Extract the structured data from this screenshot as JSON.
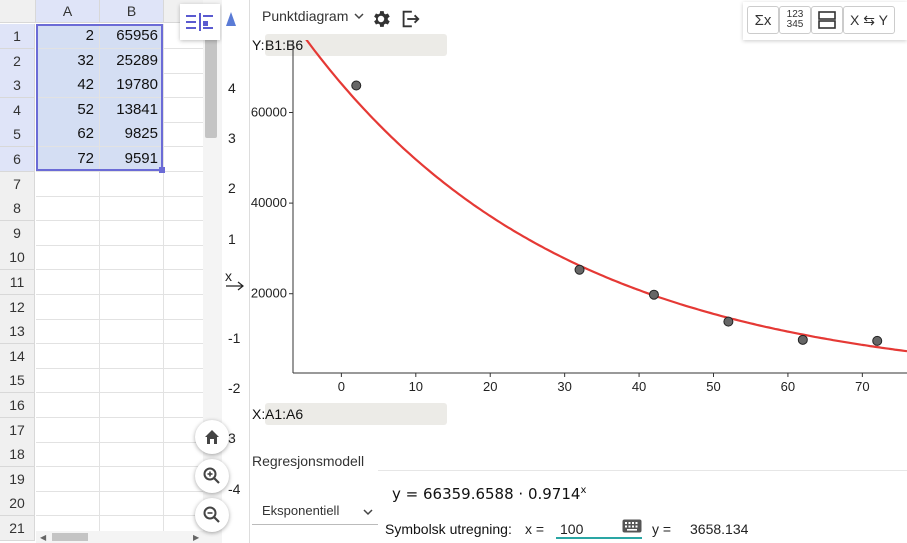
{
  "spreadsheet": {
    "columns": [
      "A",
      "B"
    ],
    "row_numbers": [
      "1",
      "2",
      "3",
      "4",
      "5",
      "6",
      "7",
      "8",
      "9",
      "10",
      "11",
      "12",
      "13",
      "14",
      "15",
      "16",
      "17",
      "18",
      "19",
      "20",
      "21"
    ],
    "rows": [
      {
        "a": "2",
        "b": "65956"
      },
      {
        "a": "32",
        "b": "25289"
      },
      {
        "a": "42",
        "b": "19780"
      },
      {
        "a": "52",
        "b": "13841"
      },
      {
        "a": "62",
        "b": "9825"
      },
      {
        "a": "72",
        "b": "9591"
      }
    ]
  },
  "graphics_axis": {
    "y_ticks": [
      "4",
      "3",
      "2",
      "1",
      "-1",
      "-2",
      "3",
      "-4"
    ],
    "x_label": "x"
  },
  "stats": {
    "plot_type": "Punktdiagram",
    "y_field_label": "Y:",
    "y_field_value": "B1:B6",
    "x_field_label": "X:",
    "x_field_value": "A1:A6",
    "tools": {
      "sigma": "Σx",
      "num_top": "123",
      "num_bottom": "345",
      "swap": "X ⇆ Y"
    },
    "regression_label": "Regresjonsmodell",
    "model": "Eksponentiell",
    "equation_prefix": "y = 66359.6588 · 0.9714",
    "equation_exponent": "x",
    "symbolic_label": "Symbolsk utregning:",
    "x_eq_label": "x =",
    "x_value": "100",
    "y_eq_label": "y =",
    "y_value": "3658.134"
  },
  "chart_data": {
    "type": "scatter",
    "points": [
      {
        "x": 2,
        "y": 65956
      },
      {
        "x": 32,
        "y": 25289
      },
      {
        "x": 42,
        "y": 19780
      },
      {
        "x": 52,
        "y": 13841
      },
      {
        "x": 62,
        "y": 9825
      },
      {
        "x": 72,
        "y": 9591
      }
    ],
    "regression": {
      "model": "exponential",
      "a": 66359.6588,
      "b": 0.9714,
      "color": "#e53935"
    },
    "x_ticks": [
      0,
      10,
      20,
      30,
      40,
      50,
      60,
      70
    ],
    "y_ticks": [
      20000,
      40000,
      60000
    ],
    "xlim": [
      -6.5,
      76
    ],
    "ylim": [
      2500,
      76000
    ],
    "point_color": "#666666",
    "grid": false
  }
}
